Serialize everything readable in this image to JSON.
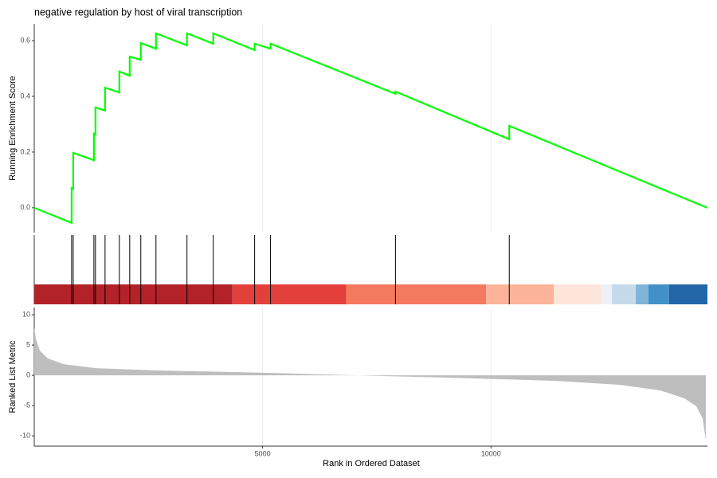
{
  "chart_data": [
    {
      "type": "line",
      "title": "negative regulation by host of viral transcription",
      "ylabel": "Running Enrichment Score",
      "x": [
        1,
        819,
        819,
        854,
        854,
        1307,
        1307,
        1341,
        1341,
        1551,
        1551,
        1864,
        1864,
        2091,
        2091,
        2334,
        2334,
        2666,
        2666,
        3345,
        3345,
        3920,
        3920,
        4826,
        4826,
        5174,
        5174,
        7909,
        7909,
        10401,
        10401,
        14740
      ],
      "values": [
        0,
        -0.054,
        0.071,
        0.068,
        0.197,
        0.171,
        0.266,
        0.263,
        0.36,
        0.349,
        0.431,
        0.414,
        0.489,
        0.474,
        0.543,
        0.531,
        0.591,
        0.571,
        0.626,
        0.583,
        0.626,
        0.589,
        0.626,
        0.566,
        0.589,
        0.571,
        0.589,
        0.409,
        0.417,
        0.246,
        0.294,
        0
      ],
      "color": "#00ff00",
      "xlim": [
        1,
        14740
      ],
      "ylim": [
        -0.089,
        0.66
      ],
      "yticks": [
        {
          "value": 0,
          "label": "0.0"
        },
        0.2,
        0.4,
        0.6
      ],
      "xticks": [
        5000,
        10000
      ],
      "grid": true
    },
    {
      "type": "rug",
      "hits": [
        819,
        854,
        1307,
        1341,
        1551,
        1864,
        2091,
        2334,
        2666,
        3345,
        3920,
        4826,
        5174,
        7909,
        10401
      ],
      "hit_color": "#000000",
      "xlim": [
        1,
        14740
      ],
      "bands": {
        "edges": [
          1,
          4338,
          6829,
          9895,
          11376,
          12404,
          12648,
          13171,
          13449,
          13902,
          14740
        ],
        "colors": [
          "#b22228",
          "#e3403c",
          "#f47a5f",
          "#fbb39a",
          "#fde5da",
          "#eef0f8",
          "#c5dbe9",
          "#7fb5d9",
          "#4290c7",
          "#2266a8"
        ]
      }
    },
    {
      "type": "area",
      "xlabel": "Rank in Ordered Dataset",
      "ylabel": "Ranked List Metric",
      "x": [
        1,
        35,
        122,
        296,
        645,
        1341,
        2735,
        4477,
        7091,
        9704,
        11446,
        12840,
        13711,
        14234,
        14495,
        14634,
        14704
      ],
      "values": [
        8.0,
        6.05,
        4.1,
        2.8,
        1.84,
        1.18,
        0.79,
        0.53,
        0,
        -0.53,
        -0.92,
        -1.58,
        -2.5,
        -3.8,
        -5.1,
        -7.1,
        -10.7
      ],
      "color": "#bebebe",
      "xlim": [
        1,
        14740
      ],
      "ylim": [
        -11.7,
        11.2
      ],
      "yticks": [
        -10,
        -5,
        0,
        5,
        10
      ],
      "xticks": [
        5000,
        10000
      ],
      "grid": true
    }
  ]
}
